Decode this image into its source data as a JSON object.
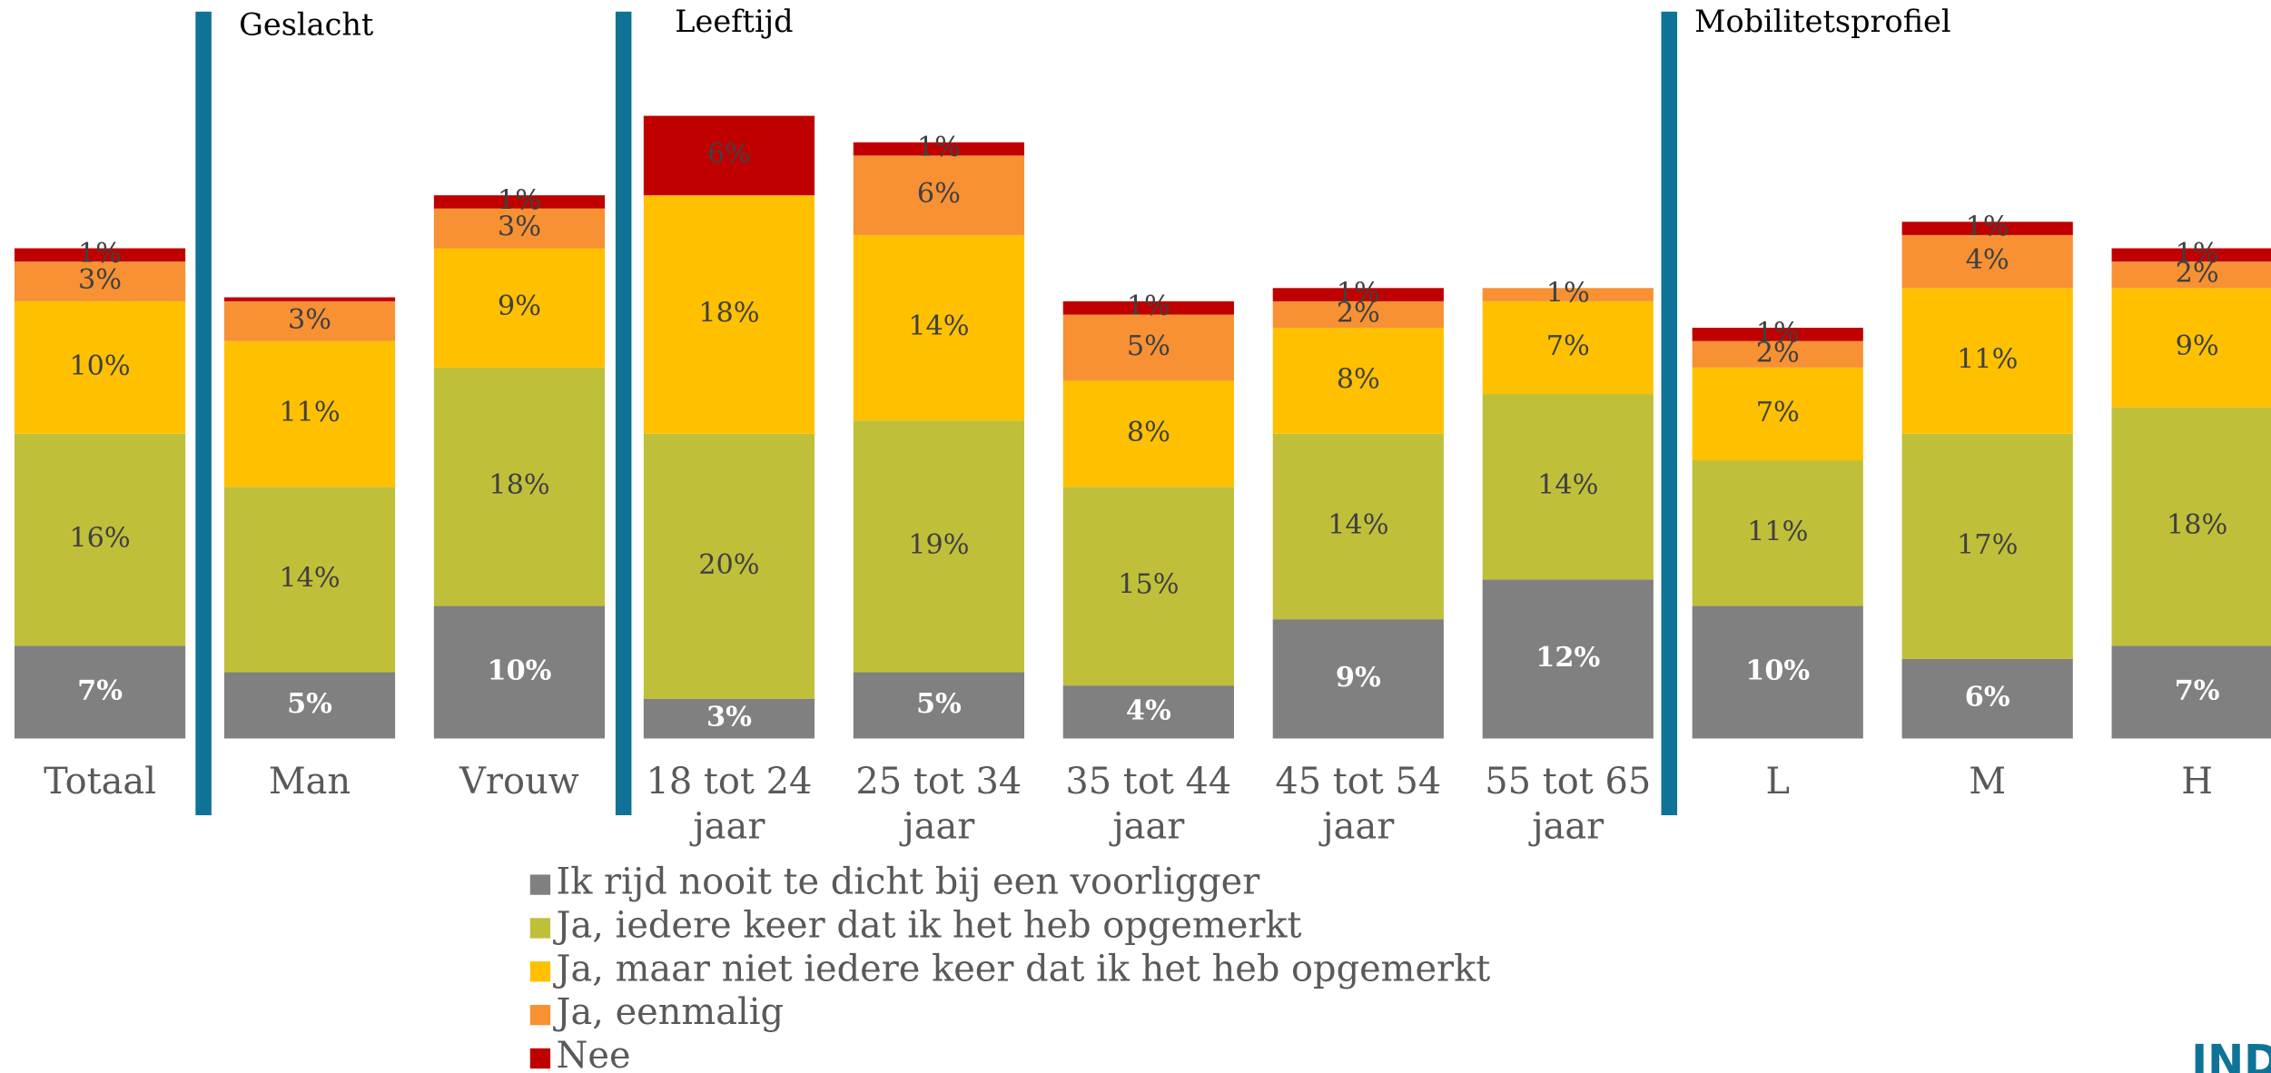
{
  "chart_data": {
    "type": "stacked-bar",
    "annotations": [
      "Geslacht",
      "Leeftijd",
      "Mobilitetsprofiel"
    ],
    "logo": "IND",
    "categories": [
      "Totaal",
      "Man",
      "Vrouw",
      "18 tot 24 jaar",
      "25 tot 34 jaar",
      "35 tot 44 jaar",
      "45 tot 54 jaar",
      "55 tot 65 jaar",
      "L",
      "M",
      "H"
    ],
    "series": [
      {
        "name": "Ik rijd nooit te dicht bij een voorligger",
        "color": "#808080",
        "values": [
          7,
          5,
          10,
          3,
          5,
          4,
          9,
          12,
          10,
          6,
          7
        ],
        "value_labels": [
          "7%",
          "5%",
          "10%",
          "3%",
          "5%",
          "4%",
          "9%",
          "12%",
          "10%",
          "6%",
          "7%"
        ]
      },
      {
        "name": "Ja, iedere keer dat ik het heb opgemerkt",
        "color": "#c0bf3a",
        "values": [
          16,
          14,
          18,
          20,
          19,
          15,
          14,
          14,
          11,
          17,
          18
        ],
        "value_labels": [
          "16%",
          "14%",
          "18%",
          "20%",
          "19%",
          "15%",
          "14%",
          "14%",
          "11%",
          "17%",
          "18%"
        ]
      },
      {
        "name": "Ja, maar niet iedere keer dat ik het heb opgemerkt",
        "color": "#ffc000",
        "values": [
          10,
          11,
          9,
          18,
          14,
          8,
          8,
          7,
          7,
          11,
          9
        ],
        "value_labels": [
          "10%",
          "11%",
          "9%",
          "18%",
          "14%",
          "8%",
          "8%",
          "7%",
          "7%",
          "11%",
          "9%"
        ]
      },
      {
        "name": "Ja, eenmalig",
        "color": "#f79133",
        "values": [
          3,
          3,
          3,
          0,
          6,
          5,
          2,
          1,
          2,
          4,
          2
        ],
        "value_labels": [
          "3%",
          "3%",
          "3%",
          null,
          "6%",
          "5%",
          "2%",
          "1%",
          "2%",
          "4%",
          "2%"
        ]
      },
      {
        "name": "Nee",
        "color": "#c00000",
        "values": [
          1,
          0.3,
          1,
          6,
          1,
          1,
          1,
          0,
          1,
          1,
          1
        ],
        "value_labels": [
          "1%",
          null,
          "1%",
          "6%",
          "1%",
          "1%",
          "1%",
          null,
          "1%",
          "1%",
          "1%"
        ]
      }
    ]
  }
}
